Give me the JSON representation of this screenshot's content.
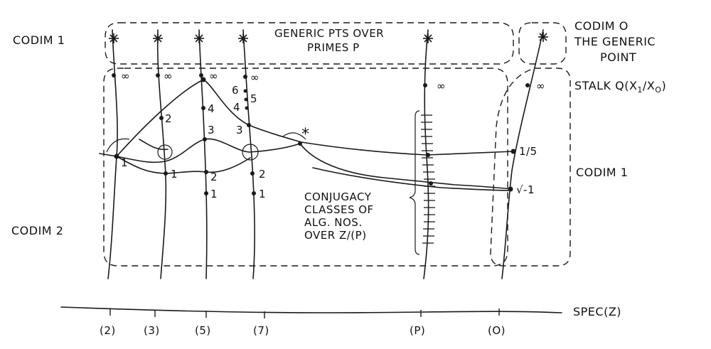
{
  "labels": {
    "left_codim1": "CODIM 1",
    "left_codim2": "CODIM 2",
    "right_codim0_line1": "CODIM O",
    "right_codim0_line2": "THE GENERIC",
    "right_codim0_line3": "POINT",
    "stalk": "STALK Q(X",
    "stalk_sub1": "1",
    "stalk_slash": "/X",
    "stalk_sub0": "O",
    "stalk_close": ")",
    "right_codim1": "CODIM 1",
    "spec": "SPEC(Z)"
  },
  "generic_box": {
    "line1": "GENERIC PTS OVER",
    "line2": "PRIMES P"
  },
  "conjugacy": {
    "line1": "CONJUGACY",
    "line2": "CLASSES OF",
    "line3": "ALG. NOS.",
    "line4": "OVER Z/(P)"
  },
  "fibers": [
    {
      "name": "(2)",
      "inf": "∞",
      "pts": [
        "1"
      ]
    },
    {
      "name": "(3)",
      "inf": "∞",
      "pts": [
        "2",
        "1"
      ]
    },
    {
      "name": "(5)",
      "inf": "∞",
      "pts": [
        "4",
        "3",
        "2",
        "1"
      ]
    },
    {
      "name": "(7)",
      "inf": "∞",
      "pts": [
        "6",
        "5",
        "4",
        "3",
        "2",
        "1"
      ]
    },
    {
      "name": "(P)",
      "inf": "∞",
      "pts": []
    },
    {
      "name": "(O)",
      "inf": "∞",
      "pts": [
        "1/5",
        "√-1"
      ]
    }
  ],
  "star": "*"
}
